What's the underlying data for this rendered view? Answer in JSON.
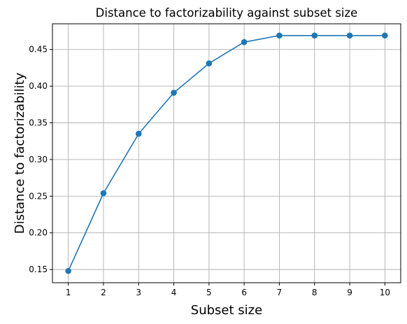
{
  "chart_data": {
    "type": "line",
    "title": "Distance to factorizability against subset size",
    "xlabel": "Subset size",
    "ylabel": "Distance to factorizability",
    "x": [
      1,
      2,
      3,
      4,
      5,
      6,
      7,
      8,
      9,
      10
    ],
    "series": [
      {
        "values": [
          0.148,
          0.254,
          0.335,
          0.391,
          0.431,
          0.46,
          0.469,
          0.469,
          0.469,
          0.469
        ],
        "color": "#1f77b4",
        "marker": "circle"
      }
    ],
    "xlim": [
      0.55,
      10.45
    ],
    "ylim": [
      0.132,
      0.485
    ],
    "xticks": [
      1,
      2,
      3,
      4,
      5,
      6,
      7,
      8,
      9,
      10
    ],
    "yticks": [
      0.15,
      0.2,
      0.25,
      0.3,
      0.35,
      0.4,
      0.45
    ],
    "ytick_labels": [
      "0.15",
      "0.20",
      "0.25",
      "0.30",
      "0.35",
      "0.40",
      "0.45"
    ],
    "grid": true,
    "legend": "none"
  }
}
